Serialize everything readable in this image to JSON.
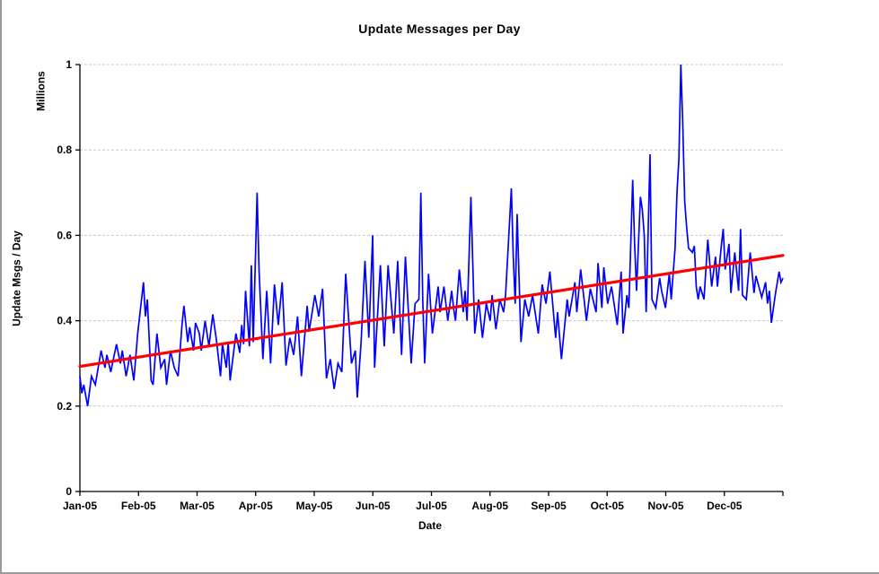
{
  "colors": {
    "background": "#ffffff",
    "page_edge": "#9a9a9a",
    "gridline": "#c9c9c9",
    "axis": "#000000",
    "series_line": "#0000ff",
    "trend_line": "#ff0000",
    "text": "#000000"
  },
  "chart_data": {
    "type": "line",
    "title": "Update Messages per Day",
    "xlabel": "Date",
    "ylabel": "Update Msgs / Day",
    "y_unit_label": "Millions",
    "x_tick_labels": [
      "Jan-05",
      "Feb-05",
      "Mar-05",
      "Apr-05",
      "May-05",
      "Jun-05",
      "Jul-05",
      "Aug-05",
      "Sep-05",
      "Oct-05",
      "Nov-05",
      "Dec-05"
    ],
    "y_ticks": [
      0,
      0.2,
      0.4,
      0.6,
      0.8,
      1
    ],
    "ylim": [
      0,
      1
    ],
    "x_days_range": [
      0,
      365
    ],
    "grid": "horizontal-dashed",
    "legend": "none",
    "series": [
      {
        "id": "daily-update-messages",
        "color": "#0000ff",
        "points": [
          [
            0,
            0.27
          ],
          [
            1,
            0.23
          ],
          [
            2,
            0.25
          ],
          [
            4,
            0.2
          ],
          [
            6,
            0.27
          ],
          [
            8,
            0.25
          ],
          [
            11,
            0.33
          ],
          [
            13,
            0.29
          ],
          [
            14,
            0.32
          ],
          [
            16,
            0.28
          ],
          [
            19,
            0.345
          ],
          [
            21,
            0.3
          ],
          [
            22,
            0.33
          ],
          [
            24,
            0.27
          ],
          [
            26,
            0.32
          ],
          [
            28,
            0.26
          ],
          [
            30,
            0.37
          ],
          [
            33,
            0.49
          ],
          [
            34,
            0.41
          ],
          [
            35,
            0.45
          ],
          [
            37,
            0.26
          ],
          [
            38,
            0.25
          ],
          [
            40,
            0.37
          ],
          [
            42,
            0.29
          ],
          [
            44,
            0.31
          ],
          [
            45,
            0.25
          ],
          [
            47,
            0.33
          ],
          [
            49,
            0.29
          ],
          [
            51,
            0.27
          ],
          [
            53,
            0.39
          ],
          [
            54,
            0.435
          ],
          [
            56,
            0.35
          ],
          [
            57,
            0.385
          ],
          [
            59,
            0.33
          ],
          [
            60,
            0.395
          ],
          [
            62,
            0.37
          ],
          [
            63,
            0.33
          ],
          [
            65,
            0.4
          ],
          [
            67,
            0.34
          ],
          [
            69,
            0.415
          ],
          [
            71,
            0.35
          ],
          [
            73,
            0.27
          ],
          [
            74,
            0.345
          ],
          [
            76,
            0.29
          ],
          [
            77,
            0.35
          ],
          [
            78,
            0.26
          ],
          [
            81,
            0.37
          ],
          [
            83,
            0.325
          ],
          [
            84,
            0.39
          ],
          [
            85,
            0.345
          ],
          [
            86,
            0.47
          ],
          [
            88,
            0.34
          ],
          [
            89,
            0.53
          ],
          [
            90,
            0.35
          ],
          [
            92,
            0.7
          ],
          [
            93,
            0.52
          ],
          [
            95,
            0.31
          ],
          [
            97,
            0.47
          ],
          [
            99,
            0.3
          ],
          [
            101,
            0.485
          ],
          [
            103,
            0.39
          ],
          [
            105,
            0.49
          ],
          [
            107,
            0.295
          ],
          [
            109,
            0.36
          ],
          [
            111,
            0.32
          ],
          [
            113,
            0.41
          ],
          [
            115,
            0.27
          ],
          [
            118,
            0.435
          ],
          [
            119,
            0.375
          ],
          [
            122,
            0.46
          ],
          [
            124,
            0.41
          ],
          [
            126,
            0.475
          ],
          [
            128,
            0.265
          ],
          [
            130,
            0.31
          ],
          [
            132,
            0.24
          ],
          [
            134,
            0.3
          ],
          [
            136,
            0.28
          ],
          [
            138,
            0.51
          ],
          [
            139,
            0.44
          ],
          [
            141,
            0.3
          ],
          [
            143,
            0.33
          ],
          [
            144,
            0.22
          ],
          [
            146,
            0.35
          ],
          [
            148,
            0.54
          ],
          [
            150,
            0.36
          ],
          [
            152,
            0.6
          ],
          [
            153,
            0.29
          ],
          [
            156,
            0.53
          ],
          [
            158,
            0.34
          ],
          [
            160,
            0.53
          ],
          [
            163,
            0.37
          ],
          [
            165,
            0.54
          ],
          [
            167,
            0.32
          ],
          [
            169,
            0.55
          ],
          [
            172,
            0.3
          ],
          [
            174,
            0.44
          ],
          [
            176,
            0.45
          ],
          [
            177,
            0.7
          ],
          [
            178,
            0.45
          ],
          [
            179,
            0.3
          ],
          [
            181,
            0.51
          ],
          [
            183,
            0.37
          ],
          [
            186,
            0.48
          ],
          [
            187,
            0.42
          ],
          [
            189,
            0.48
          ],
          [
            191,
            0.4
          ],
          [
            193,
            0.47
          ],
          [
            194,
            0.43
          ],
          [
            195,
            0.4
          ],
          [
            197,
            0.52
          ],
          [
            199,
            0.42
          ],
          [
            200,
            0.47
          ],
          [
            201,
            0.4
          ],
          [
            203,
            0.69
          ],
          [
            205,
            0.37
          ],
          [
            207,
            0.45
          ],
          [
            209,
            0.36
          ],
          [
            211,
            0.44
          ],
          [
            213,
            0.4
          ],
          [
            214,
            0.46
          ],
          [
            216,
            0.38
          ],
          [
            218,
            0.45
          ],
          [
            220,
            0.42
          ],
          [
            221,
            0.46
          ],
          [
            224,
            0.71
          ],
          [
            225,
            0.55
          ],
          [
            226,
            0.44
          ],
          [
            227,
            0.65
          ],
          [
            229,
            0.35
          ],
          [
            231,
            0.45
          ],
          [
            233,
            0.41
          ],
          [
            235,
            0.46
          ],
          [
            237,
            0.4
          ],
          [
            238,
            0.37
          ],
          [
            240,
            0.485
          ],
          [
            242,
            0.44
          ],
          [
            244,
            0.515
          ],
          [
            247,
            0.36
          ],
          [
            248,
            0.42
          ],
          [
            250,
            0.31
          ],
          [
            253,
            0.45
          ],
          [
            254,
            0.41
          ],
          [
            257,
            0.49
          ],
          [
            258,
            0.42
          ],
          [
            260,
            0.52
          ],
          [
            263,
            0.4
          ],
          [
            265,
            0.475
          ],
          [
            268,
            0.42
          ],
          [
            269,
            0.535
          ],
          [
            271,
            0.43
          ],
          [
            272,
            0.525
          ],
          [
            274,
            0.44
          ],
          [
            276,
            0.48
          ],
          [
            279,
            0.39
          ],
          [
            281,
            0.515
          ],
          [
            282,
            0.37
          ],
          [
            284,
            0.46
          ],
          [
            285,
            0.43
          ],
          [
            287,
            0.73
          ],
          [
            288,
            0.58
          ],
          [
            289,
            0.47
          ],
          [
            291,
            0.69
          ],
          [
            292,
            0.66
          ],
          [
            293,
            0.6
          ],
          [
            294,
            0.42
          ],
          [
            296,
            0.79
          ],
          [
            297,
            0.45
          ],
          [
            299,
            0.43
          ],
          [
            301,
            0.5
          ],
          [
            302,
            0.47
          ],
          [
            304,
            0.43
          ],
          [
            306,
            0.51
          ],
          [
            307,
            0.45
          ],
          [
            309,
            0.57
          ],
          [
            310,
            0.7
          ],
          [
            311,
            0.78
          ],
          [
            312,
            1.0
          ],
          [
            313,
            0.86
          ],
          [
            314,
            0.68
          ],
          [
            315,
            0.62
          ],
          [
            316,
            0.57
          ],
          [
            318,
            0.56
          ],
          [
            319,
            0.575
          ],
          [
            320,
            0.48
          ],
          [
            321,
            0.45
          ],
          [
            322,
            0.48
          ],
          [
            324,
            0.45
          ],
          [
            326,
            0.59
          ],
          [
            328,
            0.48
          ],
          [
            330,
            0.55
          ],
          [
            331,
            0.48
          ],
          [
            333,
            0.575
          ],
          [
            334,
            0.615
          ],
          [
            335,
            0.52
          ],
          [
            337,
            0.58
          ],
          [
            338,
            0.465
          ],
          [
            340,
            0.56
          ],
          [
            342,
            0.47
          ],
          [
            343,
            0.615
          ],
          [
            344,
            0.46
          ],
          [
            346,
            0.45
          ],
          [
            348,
            0.56
          ],
          [
            350,
            0.465
          ],
          [
            351,
            0.505
          ],
          [
            354,
            0.455
          ],
          [
            356,
            0.49
          ],
          [
            357,
            0.44
          ],
          [
            358,
            0.47
          ],
          [
            359,
            0.395
          ],
          [
            361,
            0.46
          ],
          [
            363,
            0.515
          ],
          [
            364,
            0.49
          ],
          [
            365,
            0.5
          ]
        ]
      },
      {
        "id": "linear-trend",
        "color": "#ff0000",
        "points": [
          [
            0,
            0.293
          ],
          [
            365,
            0.553
          ]
        ]
      }
    ]
  }
}
